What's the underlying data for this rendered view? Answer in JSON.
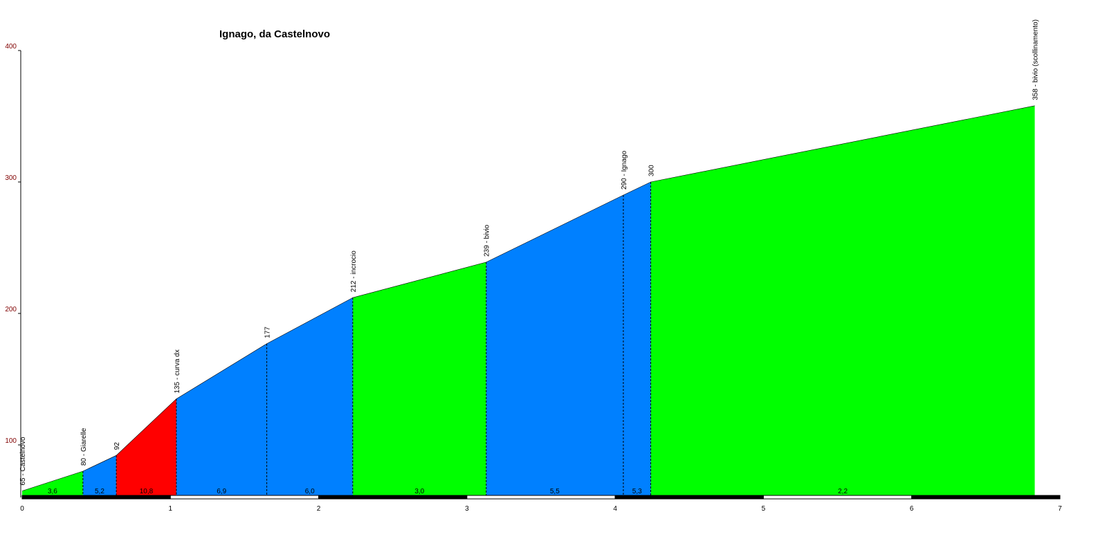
{
  "chart_data": {
    "type": "elevation_profile",
    "title": "Ignago, da Castelnovo",
    "x": [
      0,
      0.41,
      0.635,
      1.04,
      1.65,
      2.23,
      3.13,
      4.055,
      4.24,
      6.83
    ],
    "values": [
      65,
      80,
      92,
      135,
      177,
      212,
      239,
      290,
      300,
      358
    ],
    "point_labels": [
      "65 - Castelnovo",
      "80 - Giarelle",
      "92",
      "135 - curva dx",
      "177",
      "212 - incrocio",
      "239 - bivio",
      "290 - Ignago",
      "300",
      "358 - bivio (scollinamento)"
    ],
    "gradients": {
      "values": [
        3.6,
        5.2,
        10.8,
        6.9,
        6.0,
        3.0,
        5.5,
        5.3,
        2.2
      ],
      "value_labels": [
        "3,6",
        "5,2",
        "10,8",
        "6,9",
        "6,0",
        "3,0",
        "5,5",
        "5,3",
        "2,2"
      ],
      "colors": [
        "#00ff00",
        "#0080ff",
        "#ff0000",
        "#0080ff",
        "#0080ff",
        "#00ff00",
        "#0080ff",
        "#0080ff",
        "#00ff00"
      ]
    },
    "xlim": [
      0,
      7
    ],
    "xticks": [
      0,
      1,
      2,
      3,
      4,
      5,
      6,
      7
    ],
    "ylim": [
      60,
      400
    ],
    "yticks": [
      100,
      200,
      300,
      400
    ]
  }
}
